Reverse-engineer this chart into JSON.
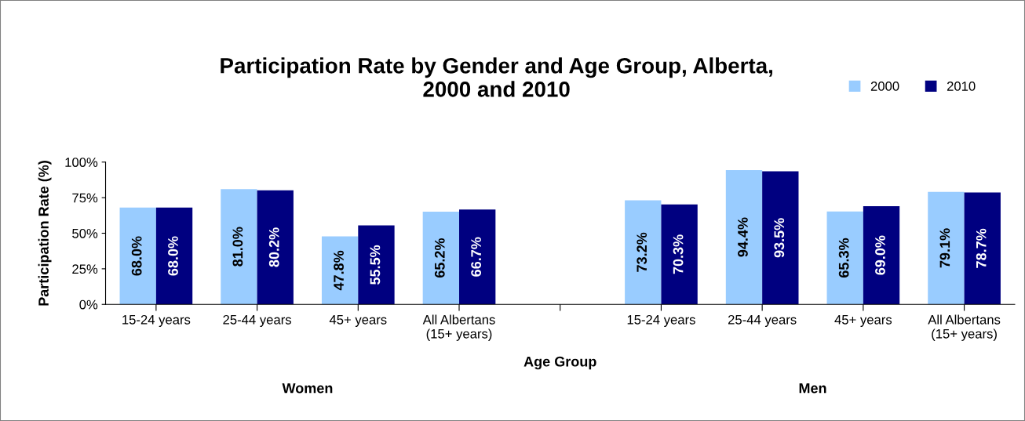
{
  "chart_data": {
    "type": "bar",
    "title": "Participation Rate by Gender and Age Group, Alberta,\n2000 and 2010",
    "categories": [
      "15-24 years",
      "25-44 years",
      "45+ years",
      "All Albertans\n(15+ years)",
      null,
      "15-24 years",
      "25-44 years",
      "45+ years",
      "All Albertans\n(15+ years)"
    ],
    "series": [
      {
        "name": "2000",
        "color": "#99ccff",
        "values": [
          68.0,
          81.0,
          47.8,
          65.2,
          null,
          73.2,
          94.4,
          65.3,
          79.1
        ],
        "value_labels": [
          "68.0%",
          "81.0%",
          "47.8%",
          "65.2%",
          null,
          "73.2%",
          "94.4%",
          "65.3%",
          "79.1%"
        ]
      },
      {
        "name": "2010",
        "color": "#000080",
        "values": [
          68.0,
          80.2,
          55.5,
          66.7,
          null,
          70.3,
          93.5,
          69.0,
          78.7
        ],
        "value_labels": [
          "68.0%",
          "80.2%",
          "55.5%",
          "66.7%",
          null,
          "70.3%",
          "93.5%",
          "69.0%",
          "78.7%"
        ]
      }
    ],
    "xlabel": "Age Group",
    "ylabel": "Participation Rate (%)",
    "annotations": [
      "Women",
      "Men"
    ],
    "ylim": [
      0,
      100
    ],
    "yticks": [
      {
        "value": 0,
        "label": "0%"
      },
      {
        "value": 25,
        "label": "25%"
      },
      {
        "value": 50,
        "label": "50%"
      },
      {
        "value": 75,
        "label": "75%"
      },
      {
        "value": 100,
        "label": "100%"
      }
    ],
    "grid": false,
    "legend": "top right"
  }
}
